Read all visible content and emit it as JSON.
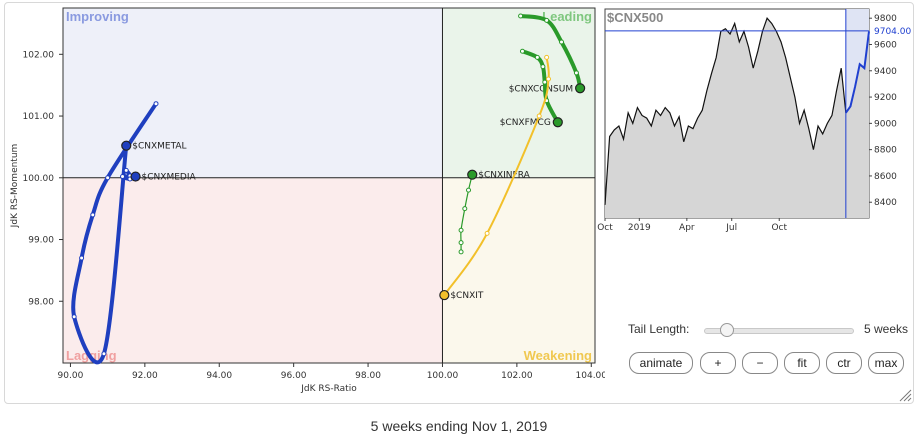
{
  "footer_text": "5 weeks ending Nov 1, 2019",
  "rrg": {
    "quadrants": {
      "improving": "Improving",
      "leading": "Leading",
      "lagging": "Lagging",
      "weakening": "Weakening"
    },
    "xlabel": "JdK RS-Ratio",
    "ylabel": "JdK RS-Momentum",
    "x_ticks": [
      "90.00",
      "92.00",
      "94.00",
      "96.00",
      "98.00",
      "100.00",
      "102.00",
      "104.00"
    ],
    "y_ticks": [
      "98.00",
      "99.00",
      "100.00",
      "101.00",
      "102.00"
    ]
  },
  "chart_data": [
    {
      "type": "scatter",
      "subtype": "relative-rotation-graph",
      "xlabel": "JdK RS-Ratio",
      "ylabel": "JdK RS-Momentum",
      "xlim": [
        89.8,
        104.1
      ],
      "ylim": [
        97.0,
        102.75
      ],
      "center": [
        100,
        100
      ],
      "series": [
        {
          "name": "$CNXMETAL",
          "color": "#1f3fbf",
          "points": [
            [
              92.3,
              101.2
            ],
            [
              91.0,
              100.0
            ],
            [
              90.6,
              99.4
            ],
            [
              90.3,
              98.7
            ],
            [
              90.1,
              97.75
            ],
            [
              90.9,
              97.15
            ]
          ],
          "head": [
            91.5,
            100.52
          ]
        },
        {
          "name": "$CNXMEDIA",
          "color": "#1f3fbf",
          "points": [
            [
              91.5,
              100.12
            ],
            [
              91.6,
              100.03
            ],
            [
              91.4,
              100.02
            ],
            [
              91.6,
              99.98
            ]
          ],
          "head": [
            91.75,
            100.02
          ]
        },
        {
          "name": "$CNXCONSUM",
          "color": "#2a9a2a",
          "points": [
            [
              102.1,
              102.62
            ],
            [
              102.8,
              102.55
            ],
            [
              103.2,
              102.2
            ],
            [
              103.6,
              101.7
            ]
          ],
          "head": [
            103.7,
            101.45
          ]
        },
        {
          "name": "$CNXFMCG",
          "color": "#2a9a2a",
          "points": [
            [
              102.15,
              102.05
            ],
            [
              102.55,
              101.95
            ],
            [
              102.7,
              101.8
            ],
            [
              102.75,
              101.55
            ],
            [
              102.8,
              101.25
            ]
          ],
          "head": [
            103.1,
            100.9
          ]
        },
        {
          "name": "$CNXINFRA",
          "color": "#2a9a2a",
          "points": [
            [
              100.5,
              98.8
            ],
            [
              100.5,
              98.95
            ],
            [
              100.5,
              99.15
            ],
            [
              100.6,
              99.5
            ],
            [
              100.7,
              99.8
            ]
          ],
          "head": [
            100.8,
            100.05
          ]
        },
        {
          "name": "$CNXIT",
          "color": "#f2c02a",
          "points": [
            [
              102.8,
              101.95
            ],
            [
              102.85,
              101.6
            ],
            [
              102.6,
              101.0
            ],
            [
              101.2,
              99.1
            ]
          ],
          "head": [
            100.05,
            98.1
          ]
        }
      ]
    },
    {
      "type": "area",
      "title": "$CNX500",
      "x_ticks": [
        "Oct",
        "2019",
        "Apr",
        "Jul",
        "Oct"
      ],
      "x_tick_positions": [
        0,
        0.13,
        0.31,
        0.48,
        0.66
      ],
      "y_ticks": [
        8400,
        8600,
        8800,
        9000,
        9200,
        9400,
        9600,
        9800
      ],
      "ylim": [
        8280,
        9870
      ],
      "current_value_label": "9704.00",
      "current_value": 9704,
      "values": [
        8380,
        8900,
        8950,
        8980,
        8880,
        9080,
        9000,
        9120,
        9060,
        9040,
        8980,
        9100,
        9060,
        9120,
        9080,
        8980,
        9050,
        8860,
        8980,
        8960,
        9040,
        9100,
        9250,
        9380,
        9500,
        9700,
        9720,
        9680,
        9760,
        9620,
        9700,
        9580,
        9420,
        9550,
        9700,
        9800,
        9760,
        9700,
        9620,
        9500,
        9350,
        9200,
        9000,
        9100,
        8960,
        8800,
        8980,
        8920,
        9000,
        9060,
        9250,
        9420,
        9080,
        9130,
        9280,
        9450,
        9420,
        9700
      ],
      "highlight_start_index": 52
    }
  ],
  "controls": {
    "tail_length_label": "Tail Length:",
    "tail_length_value": "5 weeks",
    "tail_length_fraction": 0.15,
    "buttons": [
      "animate",
      "+",
      "−",
      "fit",
      "ctr",
      "max"
    ]
  }
}
